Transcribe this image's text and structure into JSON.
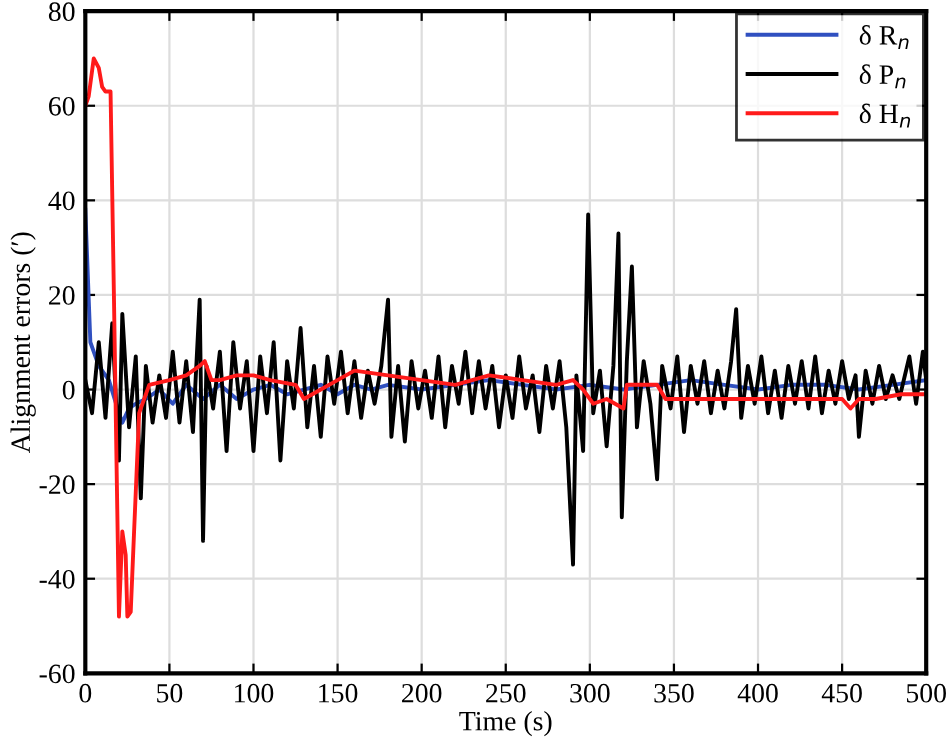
{
  "chart_data": {
    "type": "line",
    "xlabel": "Time (s)",
    "ylabel": "Alignment errors (′)",
    "xlim": [
      0,
      500
    ],
    "xticks": [
      0,
      50,
      100,
      150,
      200,
      250,
      300,
      350,
      400,
      450,
      500
    ],
    "ylim": [
      -60,
      80
    ],
    "yticks": [
      -60,
      -40,
      -20,
      0,
      20,
      40,
      60,
      80
    ],
    "grid": true,
    "legend": "top right",
    "line_style": "solid",
    "marker": "none",
    "series": [
      {
        "name": "δ R$_{n}$",
        "color": "#3050c0",
        "x": [
          0,
          3,
          8,
          14,
          20,
          22,
          26,
          30,
          36,
          44,
          52,
          60,
          70,
          80,
          90,
          100,
          110,
          120,
          130,
          140,
          150,
          160,
          170,
          180,
          200,
          220,
          240,
          260,
          280,
          300,
          320,
          340,
          360,
          380,
          400,
          420,
          440,
          460,
          480,
          500
        ],
        "values": [
          38,
          10,
          5,
          2,
          -5,
          -7,
          -4,
          -3,
          -2,
          0,
          -3,
          1,
          -2,
          1,
          -2,
          0,
          1,
          -1,
          0,
          1,
          -1,
          1,
          0,
          1,
          0,
          1,
          2,
          1,
          0,
          1,
          0,
          1,
          2,
          1,
          0,
          1,
          1,
          0,
          1,
          2
        ]
      },
      {
        "name": "δ P$_{n}$",
        "color": "#000000",
        "x": [
          0,
          4,
          8,
          12,
          16,
          20,
          22,
          26,
          30,
          33,
          36,
          40,
          44,
          48,
          52,
          56,
          60,
          64,
          68,
          70,
          72,
          76,
          80,
          84,
          88,
          92,
          96,
          100,
          104,
          108,
          112,
          116,
          120,
          124,
          128,
          132,
          136,
          140,
          144,
          148,
          152,
          156,
          160,
          164,
          168,
          172,
          176,
          180,
          182,
          186,
          190,
          194,
          198,
          202,
          206,
          210,
          214,
          218,
          222,
          226,
          230,
          234,
          238,
          242,
          246,
          250,
          254,
          258,
          262,
          266,
          270,
          274,
          278,
          282,
          286,
          290,
          292,
          296,
          299,
          302,
          306,
          310,
          314,
          317,
          319,
          322,
          325,
          328,
          332,
          336,
          340,
          343,
          348,
          352,
          356,
          360,
          364,
          368,
          372,
          376,
          380,
          384,
          387,
          390,
          394,
          398,
          402,
          406,
          410,
          414,
          418,
          422,
          426,
          430,
          434,
          438,
          442,
          446,
          450,
          454,
          458,
          460,
          464,
          468,
          472,
          476,
          480,
          484,
          490,
          494,
          498,
          500
        ],
        "values": [
          2,
          -5,
          10,
          -6,
          14,
          -15,
          16,
          -8,
          7,
          -23,
          5,
          -7,
          3,
          -6,
          8,
          -7,
          6,
          -9,
          19,
          -32,
          5,
          -4,
          8,
          -13,
          10,
          -4,
          6,
          -13,
          7,
          -5,
          10,
          -15,
          6,
          -4,
          13,
          -8,
          5,
          -10,
          7,
          -3,
          8,
          -5,
          6,
          -6,
          4,
          -3,
          5,
          19,
          -10,
          5,
          -11,
          6,
          -4,
          4,
          -6,
          7,
          -8,
          5,
          -3,
          8,
          -5,
          6,
          -4,
          5,
          -8,
          3,
          -6,
          7,
          -4,
          3,
          -9,
          5,
          -4,
          6,
          -8,
          -37,
          3,
          -13,
          37,
          -5,
          4,
          -12,
          5,
          33,
          -27,
          6,
          26,
          -8,
          6,
          -3,
          -19,
          5,
          -4,
          7,
          -9,
          5,
          -3,
          6,
          -5,
          4,
          -4,
          6,
          17,
          -6,
          5,
          -3,
          7,
          -5,
          4,
          -6,
          5,
          -3,
          6,
          -4,
          7,
          -5,
          4,
          -3,
          6,
          -2,
          3,
          -10,
          4,
          -3,
          5,
          -2,
          3,
          -2,
          7,
          -3,
          8,
          2
        ]
      },
      {
        "name": "δ H$_{n}$",
        "color": "#ff1a1a",
        "x": [
          0,
          2,
          5,
          8,
          10,
          12,
          15,
          17,
          20,
          22,
          24,
          25,
          27,
          29,
          32,
          38,
          50,
          60,
          68,
          71,
          75,
          80,
          90,
          100,
          110,
          125,
          130,
          140,
          150,
          160,
          180,
          200,
          220,
          240,
          260,
          280,
          290,
          296,
          302,
          310,
          320,
          322,
          326,
          340,
          345,
          350,
          370,
          400,
          430,
          450,
          455,
          460,
          470,
          485,
          500
        ],
        "values": [
          60,
          62,
          70,
          68,
          64,
          63,
          63,
          20,
          -48,
          -30,
          -35,
          -48,
          -47,
          -30,
          -5,
          1,
          2,
          3,
          5,
          6,
          2,
          2,
          3,
          3,
          2,
          1,
          -2,
          0,
          2,
          4,
          3,
          2,
          1,
          3,
          2,
          1,
          2,
          0,
          -3,
          -2,
          -4,
          1,
          1,
          1,
          -2,
          -2,
          -2,
          -2,
          -2,
          -2,
          -4,
          -2,
          -2,
          -1,
          -1
        ]
      }
    ]
  }
}
